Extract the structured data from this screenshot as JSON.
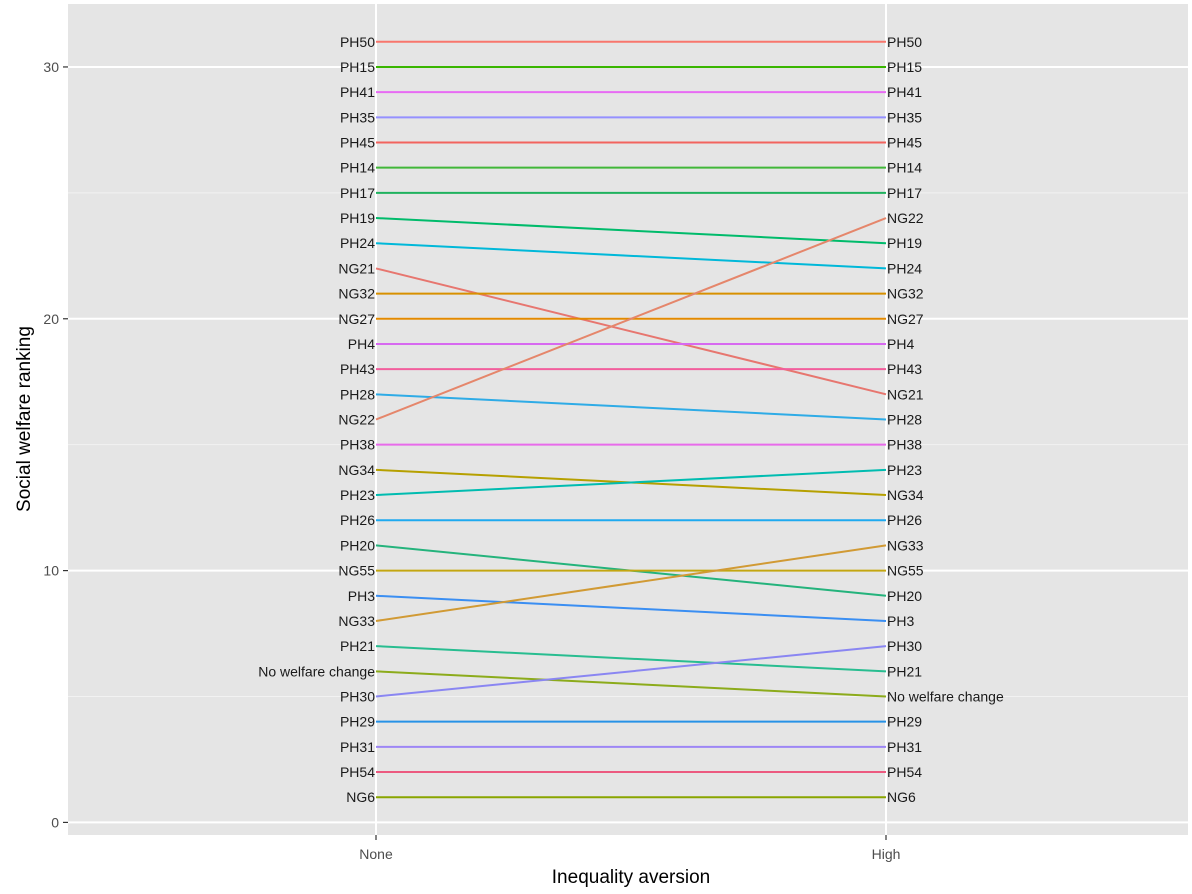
{
  "chart_data": {
    "type": "line",
    "xlabel": "Inequality aversion",
    "ylabel": "Social welfare ranking",
    "categories": [
      "None",
      "High"
    ],
    "ylim": [
      -0.5,
      32.5
    ],
    "yticks": [
      0,
      10,
      20,
      30
    ],
    "grid": true,
    "legend": "none",
    "background": "#e5e5e5",
    "grid_color": "#ffffff",
    "series": [
      {
        "name": "PH50",
        "values": [
          31,
          31
        ],
        "color": "#f8766d"
      },
      {
        "name": "PH15",
        "values": [
          30,
          30
        ],
        "color": "#39b600"
      },
      {
        "name": "PH41",
        "values": [
          29,
          29
        ],
        "color": "#e76bf3"
      },
      {
        "name": "PH35",
        "values": [
          28,
          28
        ],
        "color": "#9590ff"
      },
      {
        "name": "PH45",
        "values": [
          27,
          27
        ],
        "color": "#f2645e"
      },
      {
        "name": "PH14",
        "values": [
          26,
          26
        ],
        "color": "#41b739"
      },
      {
        "name": "PH17",
        "values": [
          25,
          25
        ],
        "color": "#1fb25e"
      },
      {
        "name": "PH19",
        "values": [
          24,
          23
        ],
        "color": "#00bb6b"
      },
      {
        "name": "PH24",
        "values": [
          23,
          22
        ],
        "color": "#00b8d9"
      },
      {
        "name": "NG21",
        "values": [
          22,
          17
        ],
        "color": "#e7766f"
      },
      {
        "name": "NG32",
        "values": [
          21,
          21
        ],
        "color": "#d89000"
      },
      {
        "name": "NG27",
        "values": [
          20,
          20
        ],
        "color": "#e38900"
      },
      {
        "name": "PH4",
        "values": [
          19,
          19
        ],
        "color": "#d769f0"
      },
      {
        "name": "PH43",
        "values": [
          18,
          18
        ],
        "color": "#f25e9c"
      },
      {
        "name": "PH28",
        "values": [
          17,
          16
        ],
        "color": "#2eabe6"
      },
      {
        "name": "NG22",
        "values": [
          16,
          24
        ],
        "color": "#e5866b"
      },
      {
        "name": "PH38",
        "values": [
          15,
          15
        ],
        "color": "#e86bea"
      },
      {
        "name": "NG34",
        "values": [
          14,
          13
        ],
        "color": "#b6a000"
      },
      {
        "name": "PH23",
        "values": [
          13,
          14
        ],
        "color": "#00bcb0"
      },
      {
        "name": "PH26",
        "values": [
          12,
          12
        ],
        "color": "#1eaaf0"
      },
      {
        "name": "PH20",
        "values": [
          11,
          9
        ],
        "color": "#24b37c"
      },
      {
        "name": "NG55",
        "values": [
          10,
          10
        ],
        "color": "#c3a612"
      },
      {
        "name": "PH3",
        "values": [
          9,
          8
        ],
        "color": "#3a8ef2"
      },
      {
        "name": "NG33",
        "values": [
          8,
          11
        ],
        "color": "#d19a34"
      },
      {
        "name": "PH21",
        "values": [
          7,
          6
        ],
        "color": "#28bd90"
      },
      {
        "name": "No welfare change",
        "values": [
          6,
          5
        ],
        "color": "#8cab1b"
      },
      {
        "name": "PH30",
        "values": [
          5,
          7
        ],
        "color": "#8a86f2"
      },
      {
        "name": "PH29",
        "values": [
          4,
          4
        ],
        "color": "#2792e6"
      },
      {
        "name": "PH31",
        "values": [
          3,
          3
        ],
        "color": "#9d86f5"
      },
      {
        "name": "PH54",
        "values": [
          2,
          2
        ],
        "color": "#ec5a80"
      },
      {
        "name": "NG6",
        "values": [
          1,
          1
        ],
        "color": "#8aa500"
      }
    ]
  }
}
